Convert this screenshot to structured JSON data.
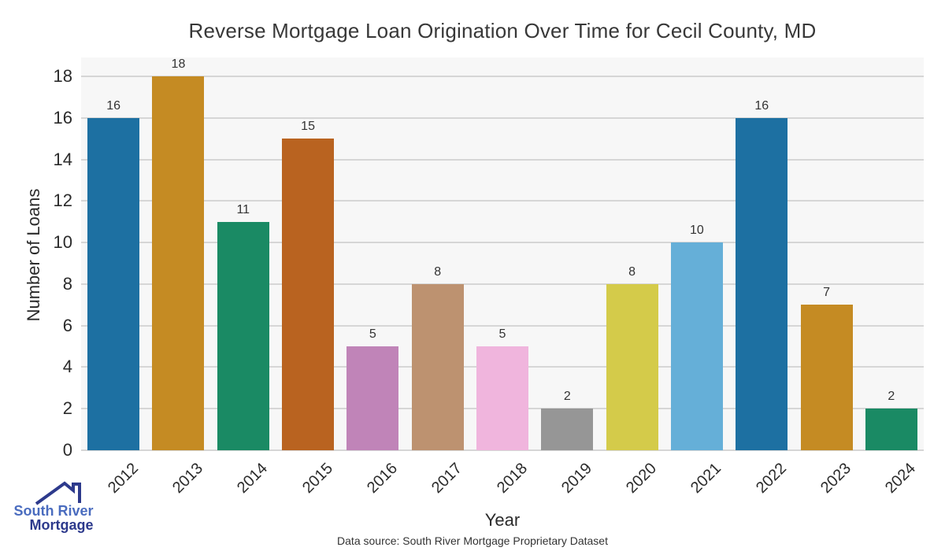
{
  "chart_data": {
    "type": "bar",
    "title": "Reverse Mortgage Loan Origination Over Time for Cecil County, MD",
    "categories": [
      "2012",
      "2013",
      "2014",
      "2015",
      "2016",
      "2017",
      "2018",
      "2019",
      "2020",
      "2021",
      "2022",
      "2023",
      "2024"
    ],
    "values": [
      16,
      18,
      11,
      15,
      5,
      8,
      5,
      2,
      8,
      10,
      16,
      7,
      2
    ],
    "bar_colors": [
      "#1d70a2",
      "#c58b23",
      "#1a8a64",
      "#b96320",
      "#c084b8",
      "#bd9270",
      "#f0b5dd",
      "#969696",
      "#d4cb4a",
      "#65afd8",
      "#1d70a2",
      "#c58b23",
      "#1a8a64"
    ],
    "xlabel": "Year",
    "ylabel": "Number of Loans",
    "ylim": [
      0,
      18
    ],
    "ytick_step": 2,
    "grid": true,
    "legend_position": "none",
    "plot_bg_color": "#f7f7f7",
    "grid_color": "#d6d6d6",
    "value_labels_shown": true
  },
  "footer": {
    "data_source": "Data source: South River Mortgage Proprietary Dataset"
  },
  "logo": {
    "line1": "South River",
    "line2": "Mortgage",
    "line1_color": "#4a6cbf",
    "line2_color": "#2d3a8c",
    "roof_icon_color": "#2d3a8c"
  }
}
